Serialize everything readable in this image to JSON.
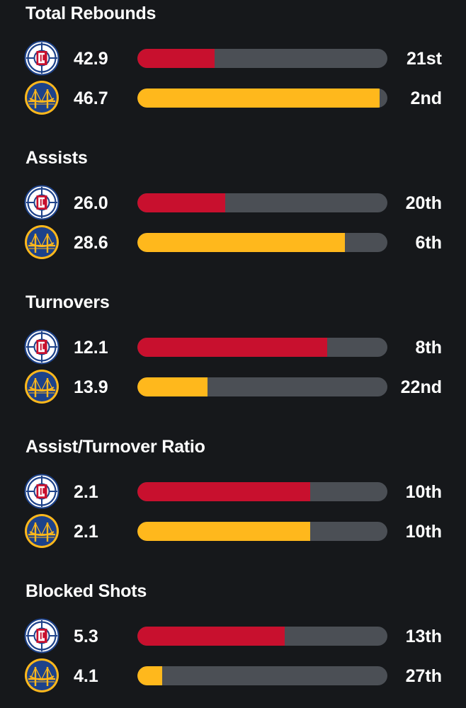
{
  "colors": {
    "background": "#16181b",
    "track": "#4b4f55",
    "clippers_bar": "#c8102e",
    "warriors_bar": "#ffb81c"
  },
  "teams": [
    {
      "key": "clippers",
      "logo_icon": "clippers-logo-icon",
      "bar_color": "#c8102e"
    },
    {
      "key": "warriors",
      "logo_icon": "warriors-logo-icon",
      "bar_color": "#ffb81c"
    }
  ],
  "stats": [
    {
      "title": "Total Rebounds",
      "rows": [
        {
          "team": "clippers",
          "value": "42.9",
          "rank": "21st",
          "fill_fraction": 0.31
        },
        {
          "team": "warriors",
          "value": "46.7",
          "rank": "2nd",
          "fill_fraction": 0.97
        }
      ]
    },
    {
      "title": "Assists",
      "rows": [
        {
          "team": "clippers",
          "value": "26.0",
          "rank": "20th",
          "fill_fraction": 0.35
        },
        {
          "team": "warriors",
          "value": "28.6",
          "rank": "6th",
          "fill_fraction": 0.83
        }
      ]
    },
    {
      "title": "Turnovers",
      "rows": [
        {
          "team": "clippers",
          "value": "12.1",
          "rank": "8th",
          "fill_fraction": 0.76
        },
        {
          "team": "warriors",
          "value": "13.9",
          "rank": "22nd",
          "fill_fraction": 0.28
        }
      ]
    },
    {
      "title": "Assist/Turnover Ratio",
      "rows": [
        {
          "team": "clippers",
          "value": "2.1",
          "rank": "10th",
          "fill_fraction": 0.69
        },
        {
          "team": "warriors",
          "value": "2.1",
          "rank": "10th",
          "fill_fraction": 0.69
        }
      ]
    },
    {
      "title": "Blocked Shots",
      "rows": [
        {
          "team": "clippers",
          "value": "5.3",
          "rank": "13th",
          "fill_fraction": 0.59
        },
        {
          "team": "warriors",
          "value": "4.1",
          "rank": "27th",
          "fill_fraction": 0.1
        }
      ]
    }
  ]
}
